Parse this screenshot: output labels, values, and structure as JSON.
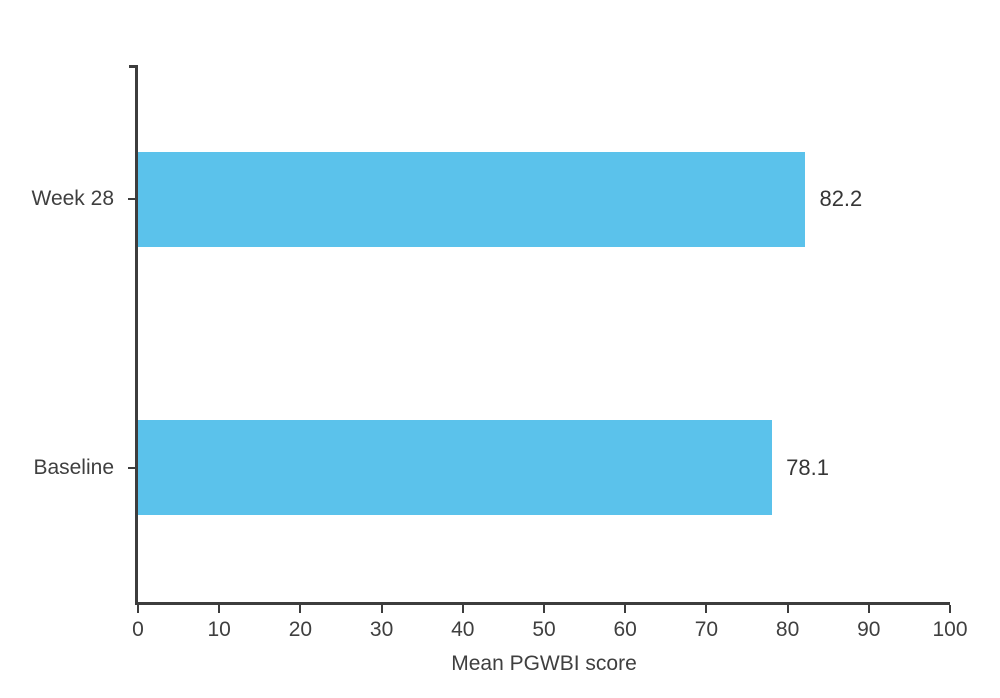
{
  "chart_data": {
    "type": "bar",
    "orientation": "horizontal",
    "title": "",
    "xlabel": "Mean PGWBI score",
    "ylabel": "",
    "categories": [
      "Week 28",
      "Baseline"
    ],
    "values": [
      82.2,
      78.1
    ],
    "value_labels": [
      "82.2",
      "78.1"
    ],
    "xlim": [
      0,
      100
    ],
    "xticks": [
      0,
      10,
      20,
      30,
      40,
      50,
      60,
      70,
      80,
      90,
      100
    ],
    "grid": false,
    "legend": false,
    "colors": {
      "bar": "#5bc2eb",
      "axis": "#3d3d3d",
      "text": "#3f3f3f",
      "value_text": "#363636"
    }
  }
}
